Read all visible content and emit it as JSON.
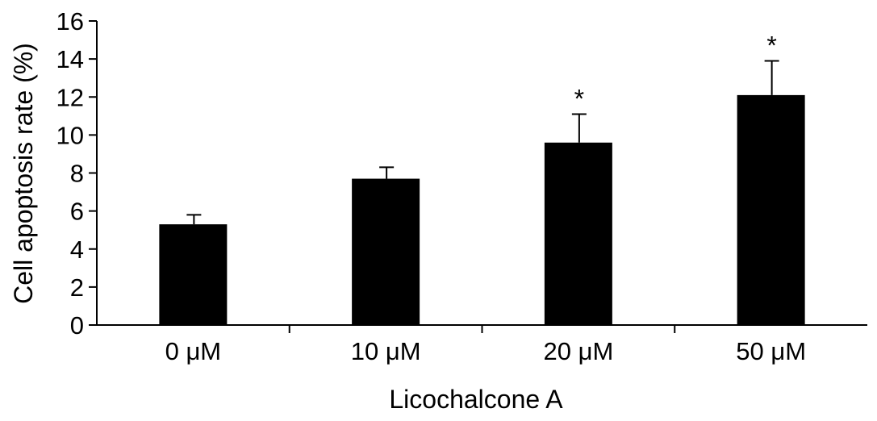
{
  "chart_data": {
    "type": "bar",
    "title": "",
    "xlabel": "Licochalcone A",
    "ylabel": "Cell apoptosis rate (%)",
    "categories": [
      "0 μM",
      "10 μM",
      "20 μM",
      "50 μM"
    ],
    "values": [
      5.3,
      7.7,
      9.6,
      12.1
    ],
    "error_bars": [
      0.5,
      0.6,
      1.5,
      1.8
    ],
    "significance": [
      "",
      "",
      "*",
      "*"
    ],
    "ylim": [
      0,
      16
    ],
    "yticks": [
      "0",
      "2",
      "4",
      "6",
      "8",
      "10",
      "12",
      "14",
      "16"
    ],
    "grid": false,
    "legend": "none",
    "bar_color": "#000000"
  }
}
